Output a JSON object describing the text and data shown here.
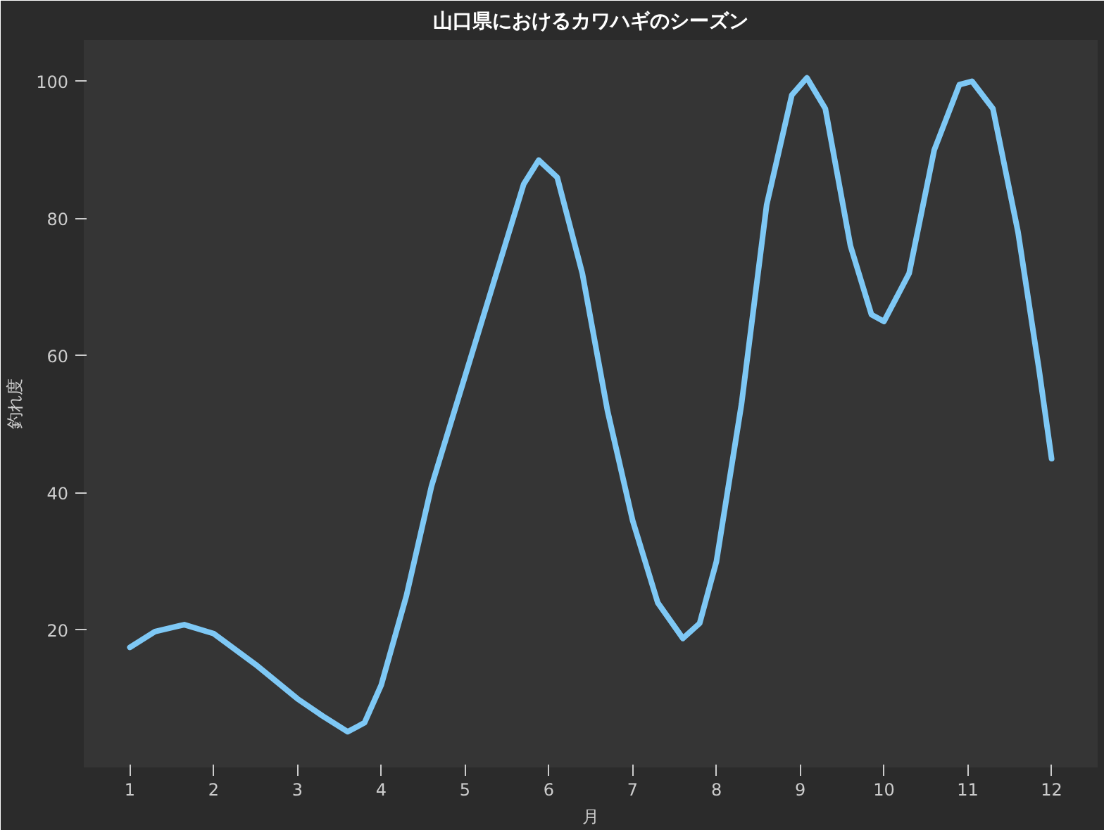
{
  "chart_data": {
    "type": "line",
    "title": "山口県におけるカワハギのシーズン",
    "xlabel": "月",
    "ylabel": "釣れ度",
    "x": [
      1.0,
      1.3,
      1.65,
      2.0,
      2.5,
      3.0,
      3.3,
      3.6,
      3.8,
      4.0,
      4.3,
      4.6,
      5.0,
      5.4,
      5.7,
      5.88,
      6.1,
      6.4,
      6.7,
      7.0,
      7.3,
      7.6,
      7.8,
      8.0,
      8.3,
      8.6,
      8.9,
      9.08,
      9.3,
      9.6,
      9.85,
      10.0,
      10.3,
      10.6,
      10.9,
      11.05,
      11.3,
      11.6,
      11.85,
      12.0
    ],
    "series": [
      {
        "color": "#7ec8f5",
        "values": [
          17.5,
          19.8,
          20.8,
          19.5,
          15,
          10,
          7.5,
          5.2,
          6.5,
          12,
          25,
          41,
          57,
          73,
          85,
          88.5,
          86,
          72,
          52,
          36,
          24,
          18.8,
          21,
          30,
          53,
          82,
          98,
          100.5,
          96,
          76,
          66,
          65,
          72,
          90,
          99.5,
          100,
          96,
          78,
          58,
          45
        ]
      }
    ],
    "xlim": [
      0.45,
      12.55
    ],
    "ylim": [
      0,
      106
    ],
    "xticks": [
      1,
      2,
      3,
      4,
      5,
      6,
      7,
      8,
      9,
      10,
      11,
      12
    ],
    "yticks": [
      20,
      40,
      60,
      80,
      100
    ],
    "grid": false,
    "marker": "none",
    "line_style": "solid"
  }
}
